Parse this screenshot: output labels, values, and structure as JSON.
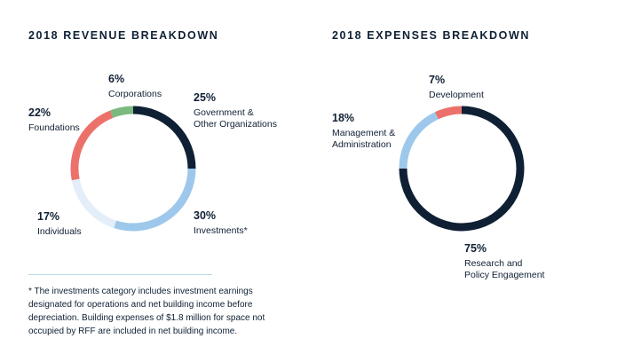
{
  "chart_data": [
    {
      "type": "pie",
      "title": "2018 REVENUE BREAKDOWN",
      "slices": [
        {
          "label": "Government & Other Organizations",
          "lines": [
            "Government &",
            "Other Organizations"
          ],
          "value": 25,
          "pct_label": "25%",
          "color": "#0f2034"
        },
        {
          "label": "Investments*",
          "lines": [
            "Investments*"
          ],
          "value": 30,
          "pct_label": "30%",
          "color": "#9dc8ec"
        },
        {
          "label": "Individuals",
          "lines": [
            "Individuals"
          ],
          "value": 17,
          "pct_label": "17%",
          "color": "#e3eef9"
        },
        {
          "label": "Foundations",
          "lines": [
            "Foundations"
          ],
          "value": 22,
          "pct_label": "22%",
          "color": "#ec716b"
        },
        {
          "label": "Corporations",
          "lines": [
            "Corporations"
          ],
          "value": 6,
          "pct_label": "6%",
          "color": "#7cb97f"
        }
      ]
    },
    {
      "type": "pie",
      "title": "2018 EXPENSES BREAKDOWN",
      "slices": [
        {
          "label": "Research and Policy Engagement",
          "lines": [
            "Research and",
            "Policy Engagement"
          ],
          "value": 75,
          "pct_label": "75%",
          "color": "#0f2034"
        },
        {
          "label": "Management & Administration",
          "lines": [
            "Management &",
            "Administration"
          ],
          "value": 18,
          "pct_label": "18%",
          "color": "#9dc8ec"
        },
        {
          "label": "Development",
          "lines": [
            "Development"
          ],
          "value": 7,
          "pct_label": "7%",
          "color": "#ec716b"
        }
      ]
    }
  ],
  "footnote": "* The investments category includes investment earnings designated for operations and net building income before depreciation. Building expenses of $1.8 million for space not occupied by RFF are included in net building income."
}
